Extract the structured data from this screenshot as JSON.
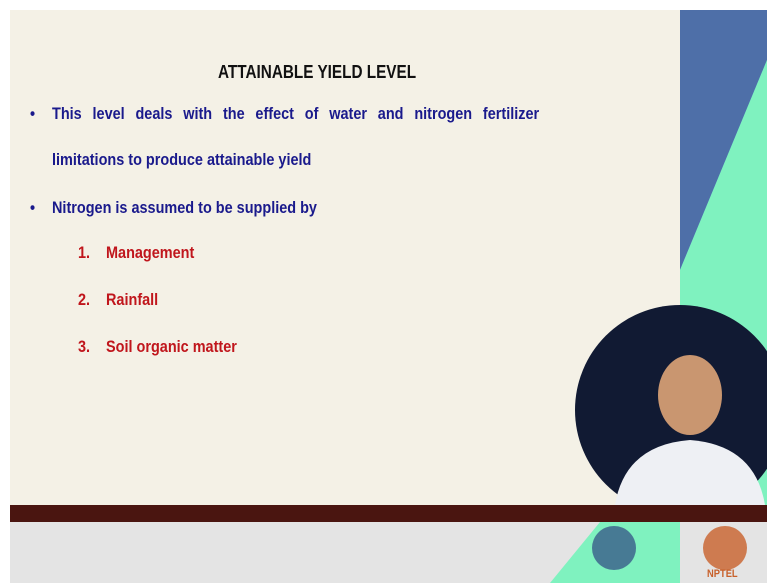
{
  "title": "ATTAINABLE YIELD LEVEL",
  "bullets": [
    {
      "line1": "This level deals with the effect of water and nitrogen fertilizer",
      "line2": "limitations to produce attainable yield"
    },
    {
      "line1": "Nitrogen is assumed to be supplied by"
    }
  ],
  "list": [
    {
      "number": "1.",
      "text": "Management"
    },
    {
      "number": "2.",
      "text": "Rainfall"
    },
    {
      "number": "3.",
      "text": "Soil organic matter"
    }
  ],
  "footer": {
    "logo_text": "NPTEL"
  }
}
